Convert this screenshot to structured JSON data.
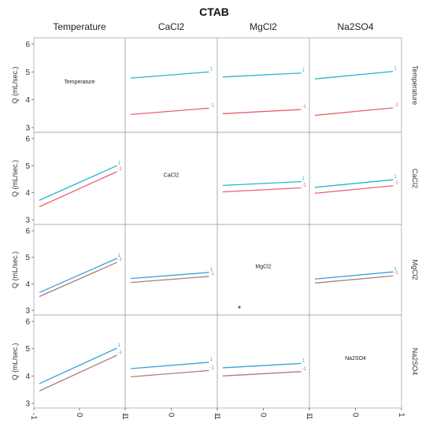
{
  "chart_data": {
    "type": "line",
    "title": "CTAB",
    "factors": [
      "Temperature",
      "CaCl2",
      "MgCl2",
      "Na2SO4"
    ],
    "ylabel": "Q (mL/sec.)",
    "ylim": [
      3,
      6
    ],
    "y_ticks": [
      "3",
      "4",
      "5",
      "6"
    ],
    "xlim": [
      -1,
      1
    ],
    "x_ticks": [
      "-1",
      "0",
      "1"
    ],
    "series_labels": [
      "1",
      "-1"
    ],
    "colors": {
      "high": "#22b8cc",
      "low": "#e8636f",
      "low_muted": "#b07a78",
      "high_muted": "#3aa0d8"
    },
    "cells": [
      {
        "row": 0,
        "col": 1,
        "lines": [
          {
            "label": "1",
            "color": "#22b8cc",
            "y": [
              4.78,
              5.0
            ]
          },
          {
            "label": "-1",
            "color": "#e8636f",
            "y": [
              3.47,
              3.7
            ]
          }
        ]
      },
      {
        "row": 0,
        "col": 2,
        "lines": [
          {
            "label": "1",
            "color": "#22b8cc",
            "y": [
              4.82,
              4.96
            ]
          },
          {
            "label": "-1",
            "color": "#e8636f",
            "y": [
              3.5,
              3.65
            ]
          }
        ]
      },
      {
        "row": 0,
        "col": 3,
        "lines": [
          {
            "label": "1",
            "color": "#22b8cc",
            "y": [
              4.75,
              5.02
            ]
          },
          {
            "label": "-1",
            "color": "#e8636f",
            "y": [
              3.44,
              3.71
            ]
          }
        ]
      },
      {
        "row": 1,
        "col": 0,
        "lines": [
          {
            "label": "1",
            "color": "#22b8cc",
            "y": [
              3.72,
              5.0
            ]
          },
          {
            "label": "-1",
            "color": "#e8636f",
            "y": [
              3.48,
              4.78
            ]
          }
        ]
      },
      {
        "row": 1,
        "col": 2,
        "lines": [
          {
            "label": "1",
            "color": "#22b8cc",
            "y": [
              4.27,
              4.41
            ]
          },
          {
            "label": "-1",
            "color": "#e8636f",
            "y": [
              4.03,
              4.18
            ]
          }
        ]
      },
      {
        "row": 1,
        "col": 3,
        "lines": [
          {
            "label": "1",
            "color": "#22b8cc",
            "y": [
              4.2,
              4.48
            ]
          },
          {
            "label": "-1",
            "color": "#e8636f",
            "y": [
              3.98,
              4.26
            ]
          }
        ]
      },
      {
        "row": 2,
        "col": 0,
        "lines": [
          {
            "label": "1",
            "color": "#3aa0d8",
            "y": [
              3.67,
              4.96
            ]
          },
          {
            "label": "-1",
            "color": "#b07a78",
            "y": [
              3.52,
              4.81
            ]
          }
        ]
      },
      {
        "row": 2,
        "col": 1,
        "lines": [
          {
            "label": "1",
            "color": "#3aa0d8",
            "y": [
              4.2,
              4.43
            ]
          },
          {
            "label": "-1",
            "color": "#b07a78",
            "y": [
              4.05,
              4.28
            ]
          }
        ]
      },
      {
        "row": 2,
        "col": 3,
        "lines": [
          {
            "label": "1",
            "color": "#3aa0d8",
            "y": [
              4.18,
              4.45
            ]
          },
          {
            "label": "-1",
            "color": "#b07a78",
            "y": [
              4.03,
              4.3
            ]
          }
        ]
      },
      {
        "row": 3,
        "col": 0,
        "lines": [
          {
            "label": "1",
            "color": "#3aa0d8",
            "y": [
              3.72,
              5.02
            ]
          },
          {
            "label": "-1",
            "color": "#b07a78",
            "y": [
              3.45,
              4.76
            ]
          }
        ]
      },
      {
        "row": 3,
        "col": 1,
        "lines": [
          {
            "label": "1",
            "color": "#3aa0d8",
            "y": [
              4.27,
              4.5
            ]
          },
          {
            "label": "-1",
            "color": "#b07a78",
            "y": [
              3.97,
              4.2
            ]
          }
        ]
      },
      {
        "row": 3,
        "col": 2,
        "lines": [
          {
            "label": "1",
            "color": "#3aa0d8",
            "y": [
              4.3,
              4.46
            ]
          },
          {
            "label": "-1",
            "color": "#b07a78",
            "y": [
              4.0,
              4.16
            ]
          }
        ]
      }
    ]
  }
}
